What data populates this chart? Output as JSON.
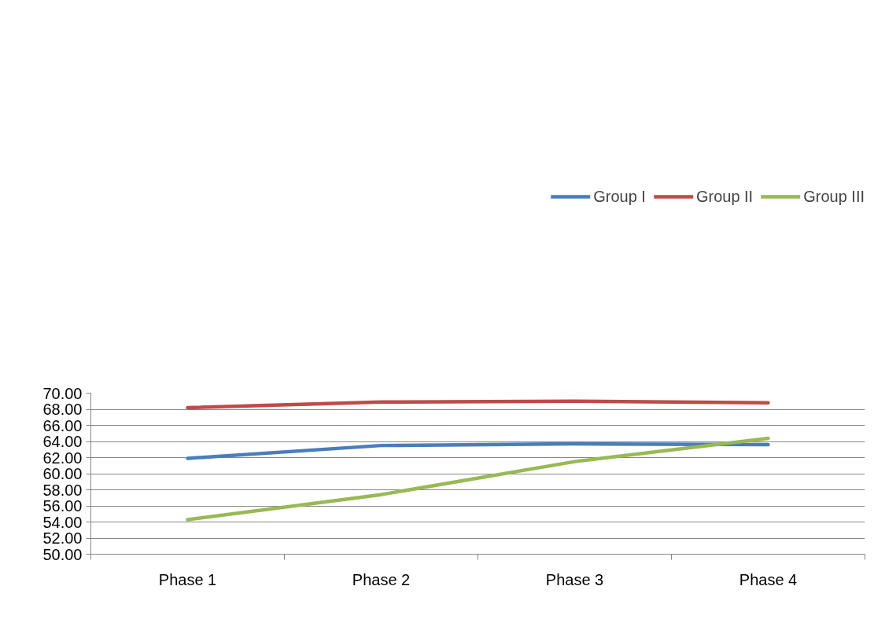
{
  "chart_data": {
    "type": "line",
    "categories": [
      "Phase 1",
      "Phase 2",
      "Phase 3",
      "Phase 4"
    ],
    "series": [
      {
        "name": "Group I",
        "color": "#4a7ebb",
        "values": [
          61.9,
          63.5,
          63.7,
          63.6
        ]
      },
      {
        "name": "Group II",
        "color": "#be4b48",
        "values": [
          68.2,
          68.9,
          69.0,
          68.8
        ]
      },
      {
        "name": "Group III",
        "color": "#98b954",
        "values": [
          54.3,
          57.4,
          61.5,
          64.4
        ]
      }
    ],
    "ylim": [
      50,
      70
    ],
    "yticks": [
      {
        "value": 50,
        "label": "50.00"
      },
      {
        "value": 52,
        "label": "52.00"
      },
      {
        "value": 54,
        "label": "54.00"
      },
      {
        "value": 56,
        "label": "56.00"
      },
      {
        "value": 58,
        "label": "58.00"
      },
      {
        "value": 60,
        "label": "60.00"
      },
      {
        "value": 62,
        "label": "62.00"
      },
      {
        "value": 64,
        "label": "64.00"
      },
      {
        "value": 66,
        "label": "66.00"
      },
      {
        "value": 68,
        "label": "68.00"
      },
      {
        "value": 70,
        "label": "70.00"
      }
    ],
    "grid": "y",
    "legend": "top right",
    "marker": "none",
    "line_style": "solid"
  }
}
